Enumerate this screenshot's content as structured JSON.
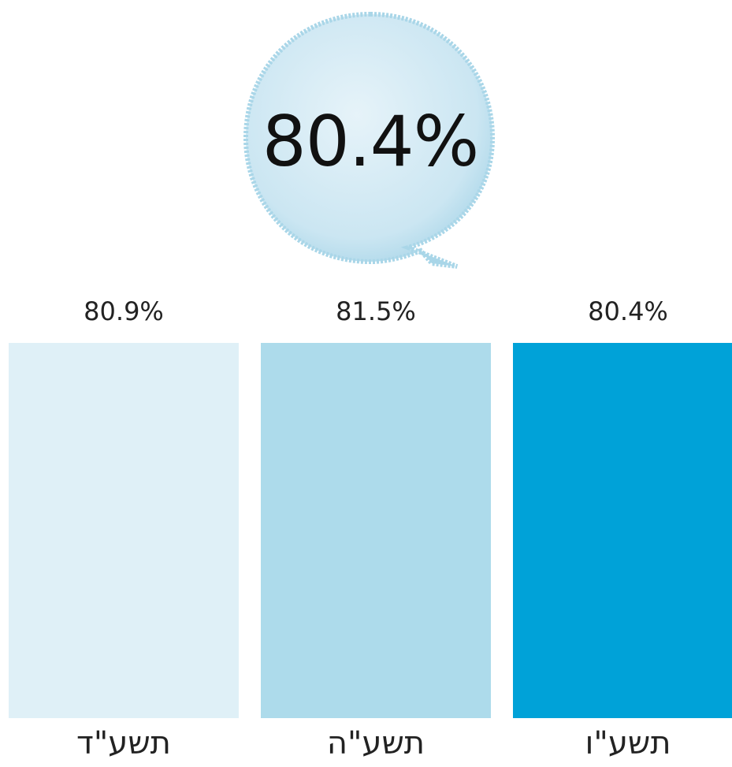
{
  "headline": {
    "value": "80.4%"
  },
  "colors": {
    "bubble_fill": "#cfe8f3",
    "bubble_edge": "#a9d6e8",
    "bar_light": "#dff0f7",
    "bar_mid": "#addbeb",
    "bar_dark": "#00a2d8"
  },
  "chart_data": {
    "type": "bar",
    "categories": [
      "תשע\"ד",
      "תשע\"ה",
      "תשע\"ו"
    ],
    "values": [
      80.9,
      81.5,
      80.4
    ],
    "value_labels": [
      "80.9%",
      "81.5%",
      "80.4%"
    ],
    "bar_colors": [
      "#dff0f7",
      "#addbeb",
      "#00a2d8"
    ],
    "title": "",
    "xlabel": "",
    "ylabel": "",
    "grid": false,
    "legend": "none"
  }
}
